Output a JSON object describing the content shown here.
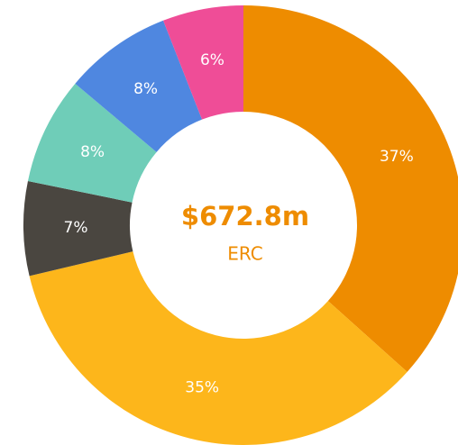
{
  "chart_data": {
    "type": "donut",
    "title": "$672.8m",
    "subtitle": "ERC",
    "categories": [
      null,
      null,
      null,
      null,
      null,
      null
    ],
    "values": [
      37,
      35,
      7,
      8,
      8,
      6
    ],
    "value_labels": [
      "37%",
      "35%",
      "7%",
      "8%",
      "8%",
      "6%"
    ],
    "colors": [
      "#ee8c00",
      "#fdb61b",
      "#4a4640",
      "#6fcdb8",
      "#4f87e0",
      "#ef4d97"
    ]
  }
}
